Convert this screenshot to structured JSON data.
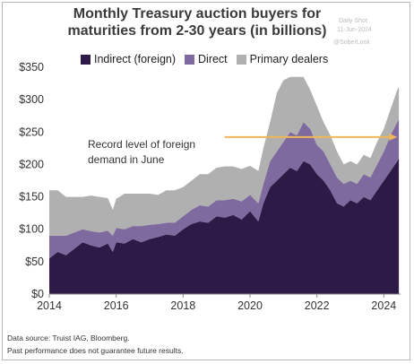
{
  "title_line1": "Monthly Treasury auction buyers for",
  "title_line2": "maturities from 2-30 years (in billions)",
  "watermark": {
    "line1": "Daily Shot",
    "line2": "11-Jun-2024",
    "line3": "@SoberLook"
  },
  "footer": {
    "source": "Data source: Truist IAG, Bloomberg.",
    "disclaimer": "Past performance does not guarantee future results."
  },
  "colors": {
    "indirect": "#2e1a47",
    "direct": "#7e6a9e",
    "dealers": "#b0b0b0",
    "arrow": "#f0b65a"
  },
  "chart_data": {
    "type": "area",
    "stacked": true,
    "x": [
      2014.0,
      2014.25,
      2014.5,
      2014.75,
      2015.0,
      2015.25,
      2015.5,
      2015.75,
      2015.9,
      2016.0,
      2016.25,
      2016.5,
      2016.75,
      2017.0,
      2017.25,
      2017.5,
      2017.75,
      2018.0,
      2018.25,
      2018.5,
      2018.75,
      2019.0,
      2019.25,
      2019.5,
      2019.75,
      2020.0,
      2020.25,
      2020.4,
      2020.6,
      2020.8,
      2021.0,
      2021.2,
      2021.4,
      2021.6,
      2021.8,
      2022.0,
      2022.2,
      2022.4,
      2022.6,
      2022.8,
      2023.0,
      2023.2,
      2023.4,
      2023.6,
      2023.8,
      2024.0,
      2024.2,
      2024.4,
      2024.45
    ],
    "series": [
      {
        "name": "Indirect (foreign)",
        "values": [
          55,
          65,
          60,
          70,
          80,
          75,
          72,
          78,
          65,
          80,
          78,
          85,
          80,
          85,
          88,
          92,
          90,
          100,
          108,
          112,
          110,
          120,
          118,
          122,
          115,
          128,
          112,
          140,
          165,
          175,
          185,
          195,
          190,
          205,
          200,
          185,
          175,
          160,
          140,
          135,
          145,
          140,
          150,
          145,
          160,
          175,
          190,
          205,
          210
        ]
      },
      {
        "name": "Direct",
        "values": [
          35,
          25,
          30,
          25,
          20,
          22,
          23,
          20,
          25,
          22,
          22,
          20,
          25,
          22,
          20,
          18,
          20,
          20,
          22,
          25,
          25,
          25,
          27,
          25,
          28,
          25,
          28,
          30,
          40,
          45,
          50,
          55,
          55,
          60,
          55,
          45,
          45,
          40,
          40,
          35,
          30,
          30,
          35,
          35,
          40,
          45,
          55,
          60,
          60
        ]
      },
      {
        "name": "Primary dealers",
        "values": [
          70,
          70,
          60,
          55,
          50,
          55,
          55,
          50,
          40,
          45,
          55,
          50,
          50,
          48,
          45,
          50,
          50,
          45,
          45,
          48,
          50,
          50,
          52,
          50,
          50,
          45,
          50,
          55,
          60,
          90,
          95,
          85,
          90,
          70,
          60,
          60,
          45,
          45,
          40,
          30,
          30,
          30,
          30,
          30,
          35,
          35,
          40,
          50,
          50
        ]
      }
    ],
    "xlim": [
      2014,
      2024.5
    ],
    "ylim": [
      0,
      350
    ],
    "xticks": [
      "2014",
      "2016",
      "2018",
      "2020",
      "2022",
      "2024"
    ],
    "xtick_values": [
      2014,
      2016,
      2018,
      2020,
      2022,
      2024
    ],
    "yticks": [
      "$0",
      "$50",
      "$100",
      "$150",
      "$200",
      "$250",
      "$300",
      "$350"
    ],
    "ytick_values": [
      0,
      50,
      100,
      150,
      200,
      250,
      300,
      350
    ],
    "annotation": {
      "line1": "Record level of foreign",
      "line2": "demand in June",
      "x_start": 2017.9,
      "x_end": 2024.4,
      "y": 205
    },
    "legend_position": "top",
    "grid": false
  }
}
